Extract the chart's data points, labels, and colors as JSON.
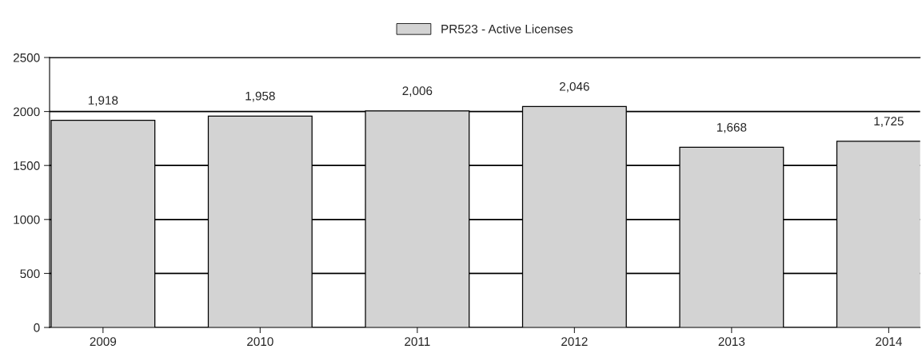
{
  "chart_data": {
    "type": "bar",
    "categories": [
      "2009",
      "2010",
      "2011",
      "2012",
      "2013",
      "2014"
    ],
    "series": [
      {
        "name": "PR523 - Active Licenses",
        "color": "#d3d3d3",
        "values": [
          1918,
          1958,
          2006,
          2046,
          1668,
          1725
        ],
        "value_labels": [
          "1,918",
          "1,958",
          "2,006",
          "2,046",
          "1,668",
          "1,725"
        ]
      }
    ],
    "ylim": [
      0,
      2500
    ],
    "yticks": [
      0,
      500,
      1000,
      1500,
      2000,
      2500
    ],
    "grid": "y",
    "legend": "top"
  }
}
